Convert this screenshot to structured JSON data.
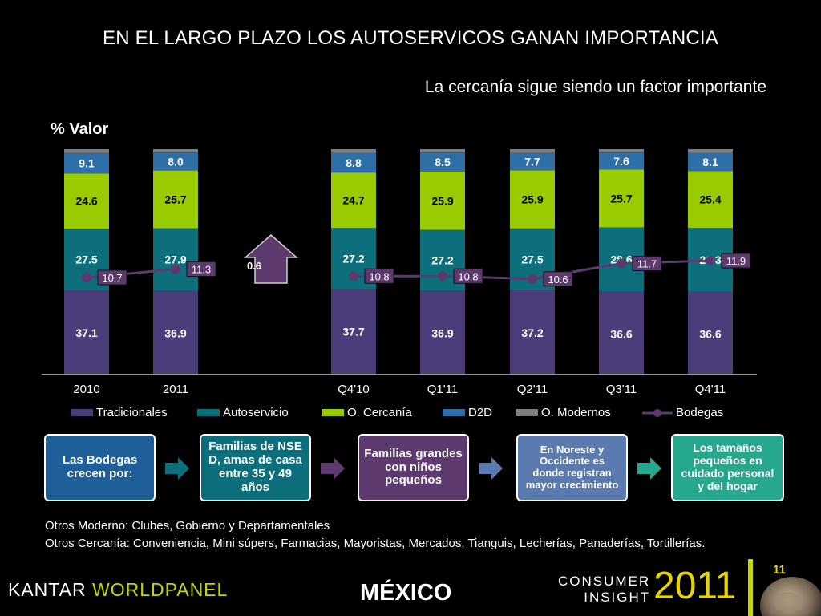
{
  "header": {
    "title": "EN EL LARGO PLAZO LOS AUTOSERVICOS GANAN  IMPORTANCIA",
    "subtitle": "La cercanía sigue siendo un factor importante",
    "ylabel": "% Valor"
  },
  "chart_data": {
    "type": "bar",
    "stacked": true,
    "categories": [
      "2010",
      "2011",
      "Q4'10",
      "Q1'11",
      "Q2'11",
      "Q3'11",
      "Q4'11"
    ],
    "series": [
      {
        "name": "Tradicionales",
        "color": "#4c3d7a",
        "values": [
          37.1,
          36.9,
          37.7,
          36.9,
          37.2,
          36.6,
          36.6
        ]
      },
      {
        "name": "Autoservicio",
        "color": "#0d6f7c",
        "values": [
          27.5,
          27.9,
          27.2,
          27.2,
          27.5,
          28.6,
          28.3
        ]
      },
      {
        "name": "O. Cercanía",
        "color": "#99cc00",
        "values": [
          24.6,
          25.7,
          24.7,
          25.9,
          25.9,
          25.7,
          25.4
        ]
      },
      {
        "name": "D2D",
        "color": "#2e6fa8",
        "values": [
          9.1,
          8.0,
          8.8,
          8.5,
          7.7,
          7.6,
          8.1
        ]
      },
      {
        "name": "O. Modernos",
        "color": "#7f7f7f",
        "values": [
          1.7,
          1.5,
          1.6,
          1.5,
          1.7,
          1.5,
          1.6
        ]
      }
    ],
    "line_series": {
      "name": "Bodegas",
      "color": "#5c3a6e",
      "label_bg": "#5c3a6e",
      "values": [
        10.7,
        11.3,
        10.8,
        10.8,
        10.6,
        11.7,
        11.9
      ],
      "segments": [
        [
          0,
          1
        ],
        [
          2,
          3,
          4,
          5,
          6
        ]
      ]
    },
    "annotation": {
      "value": "0.6",
      "shape": "up-arrow",
      "color": "#5c3a6e"
    },
    "ylim": [
      0,
      100
    ],
    "legend_position": "bottom",
    "grid": false
  },
  "flow": {
    "items": [
      {
        "text": "Las Bodegas crecen por:",
        "color": "#1f5f99"
      },
      {
        "text": "Familias de NSE D, amas de casa entre 35 y 49 años",
        "color": "#0d6f7c"
      },
      {
        "text": "Familias grandes con niños pequeños",
        "color": "#5c3a6e"
      },
      {
        "text": "En Noreste y Occidente es donde registran mayor crecimiento",
        "color": "#5a7ab0"
      },
      {
        "text": "Los tamaños pequeños en cuidado personal y del hogar",
        "color": "#26a88e"
      }
    ],
    "arrow_color": "#1f5f99"
  },
  "notes": {
    "line1": "Otros Moderno: Clubes, Gobierno y Departamentales",
    "line2": "Otros  Cercanía: Conveniencia, Mini súpers, Farmacias, Mayoristas, Mercados, Tianguis, Lecherías, Panaderías, Tortillerías."
  },
  "footer": {
    "brand_part1": "KANTAR",
    "brand_part2": "WORLDPANEL",
    "country": "MÉXICO",
    "consumer_line1": "CONSUMER",
    "consumer_line2": "INSIGHT",
    "year": "2011",
    "page": "11"
  }
}
